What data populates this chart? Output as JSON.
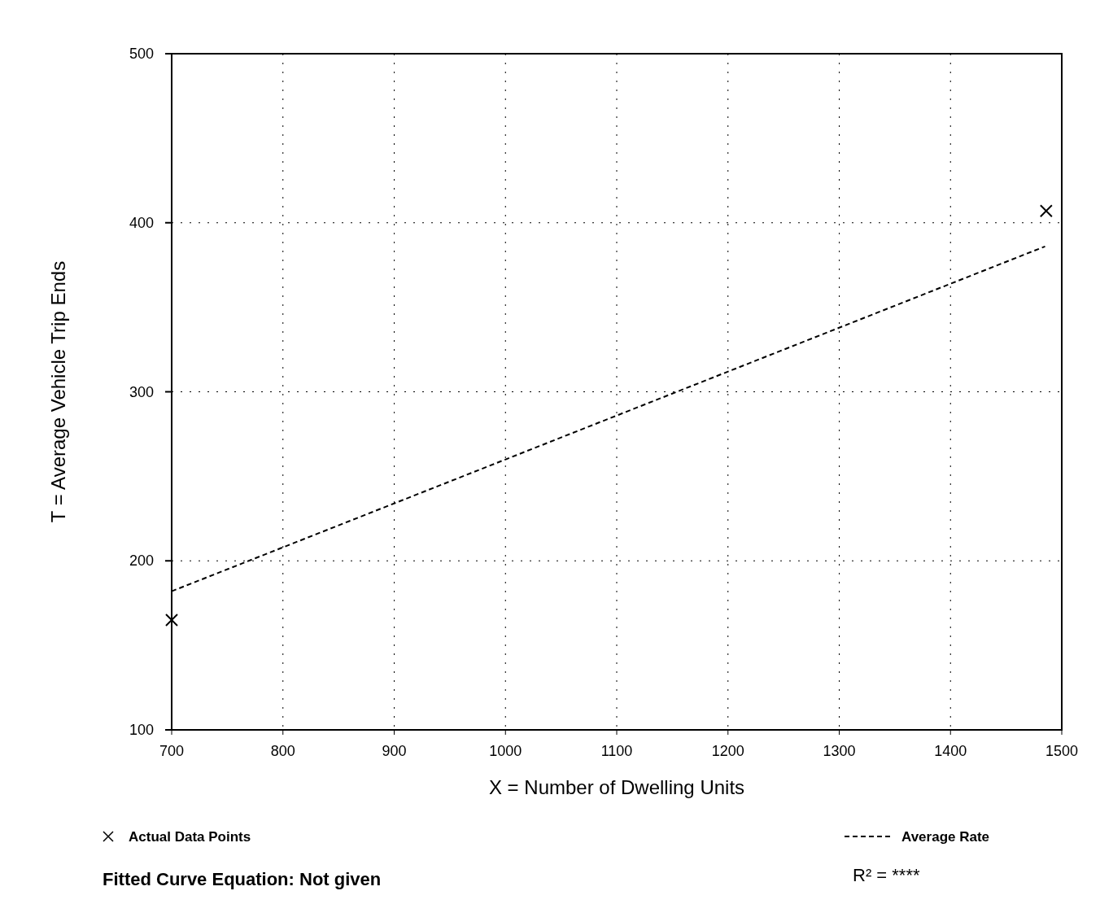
{
  "chart_data": {
    "type": "scatter",
    "xlabel": "X = Number of Dwelling Units",
    "ylabel": "T = Average Vehicle Trip Ends",
    "xlim": [
      700,
      1500
    ],
    "xticks": [
      700,
      800,
      900,
      1000,
      1100,
      1200,
      1300,
      1400,
      1500
    ],
    "ylim": [
      100,
      500
    ],
    "yticks": [
      100,
      200,
      300,
      400,
      500
    ],
    "series": [
      {
        "name": "Actual Data Points",
        "marker": "cross",
        "color": "#000000",
        "x": [
          700,
          1486
        ],
        "values": [
          165,
          407
        ]
      },
      {
        "name": "Average Rate",
        "type": "line",
        "line_style": "dashed",
        "marker": "none",
        "color": "#000000",
        "x": [
          700,
          1485
        ],
        "values": [
          182,
          386
        ]
      }
    ],
    "grid": true,
    "legend": "bottom",
    "annotations": [
      "Fitted Curve Equation:  Not given",
      "R² = ****"
    ]
  }
}
